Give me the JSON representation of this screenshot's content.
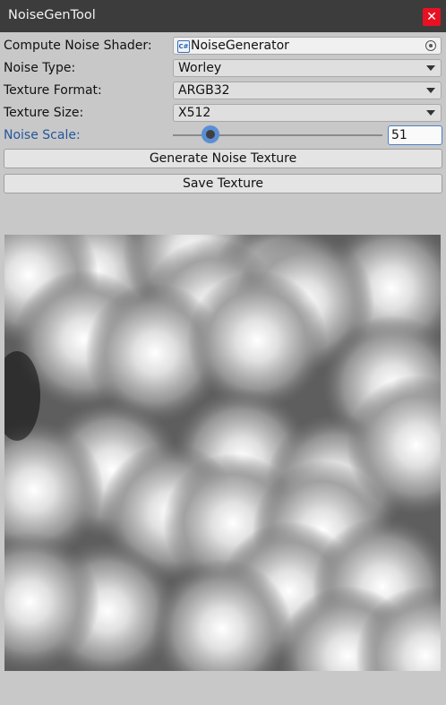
{
  "window": {
    "title": "NoiseGenTool",
    "close_icon": "close-icon"
  },
  "fields": {
    "shader": {
      "label": "Compute Noise Shader:",
      "value": "NoiseGenerator",
      "icon": "cs-script-icon",
      "icon_text": "C#"
    },
    "noise_type": {
      "label": "Noise Type:",
      "value": "Worley"
    },
    "texture_format": {
      "label": "Texture Format:",
      "value": "ARGB32"
    },
    "texture_size": {
      "label": "Texture Size:",
      "value": "X512"
    },
    "noise_scale": {
      "label": "Noise Scale:",
      "value": "51",
      "fraction": 0.18
    }
  },
  "buttons": {
    "generate": "Generate Noise Texture",
    "save": "Save Texture"
  },
  "colors": {
    "accent": "#5a8fd6",
    "close": "#e81123",
    "titlebar": "#3c3c3c"
  }
}
